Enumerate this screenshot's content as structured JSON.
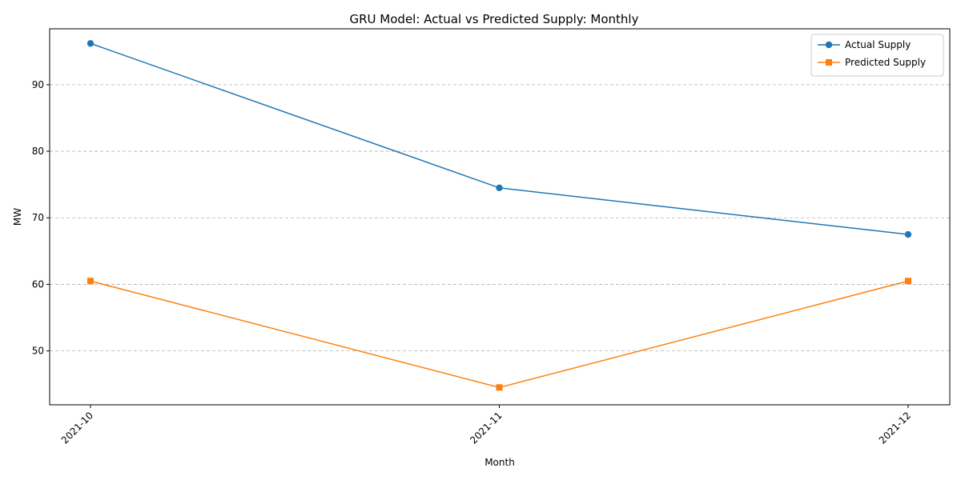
{
  "chart_data": {
    "type": "line",
    "title": "GRU Model: Actual vs Predicted Supply: Monthly",
    "xlabel": "Month",
    "ylabel": "MW",
    "categories": [
      "2021-10",
      "2021-11",
      "2021-12"
    ],
    "series": [
      {
        "name": "Actual Supply",
        "values": [
          96.2,
          74.5,
          67.5
        ],
        "color": "#1f77b4",
        "marker": "circle"
      },
      {
        "name": "Predicted Supply",
        "values": [
          60.5,
          44.5,
          60.5
        ],
        "color": "#ff7f0e",
        "marker": "square"
      }
    ],
    "ylim": [
      41.9,
      98.4
    ],
    "yticks": [
      50,
      60,
      70,
      80,
      90
    ],
    "grid": "y-dashed",
    "legend": "top-right"
  }
}
